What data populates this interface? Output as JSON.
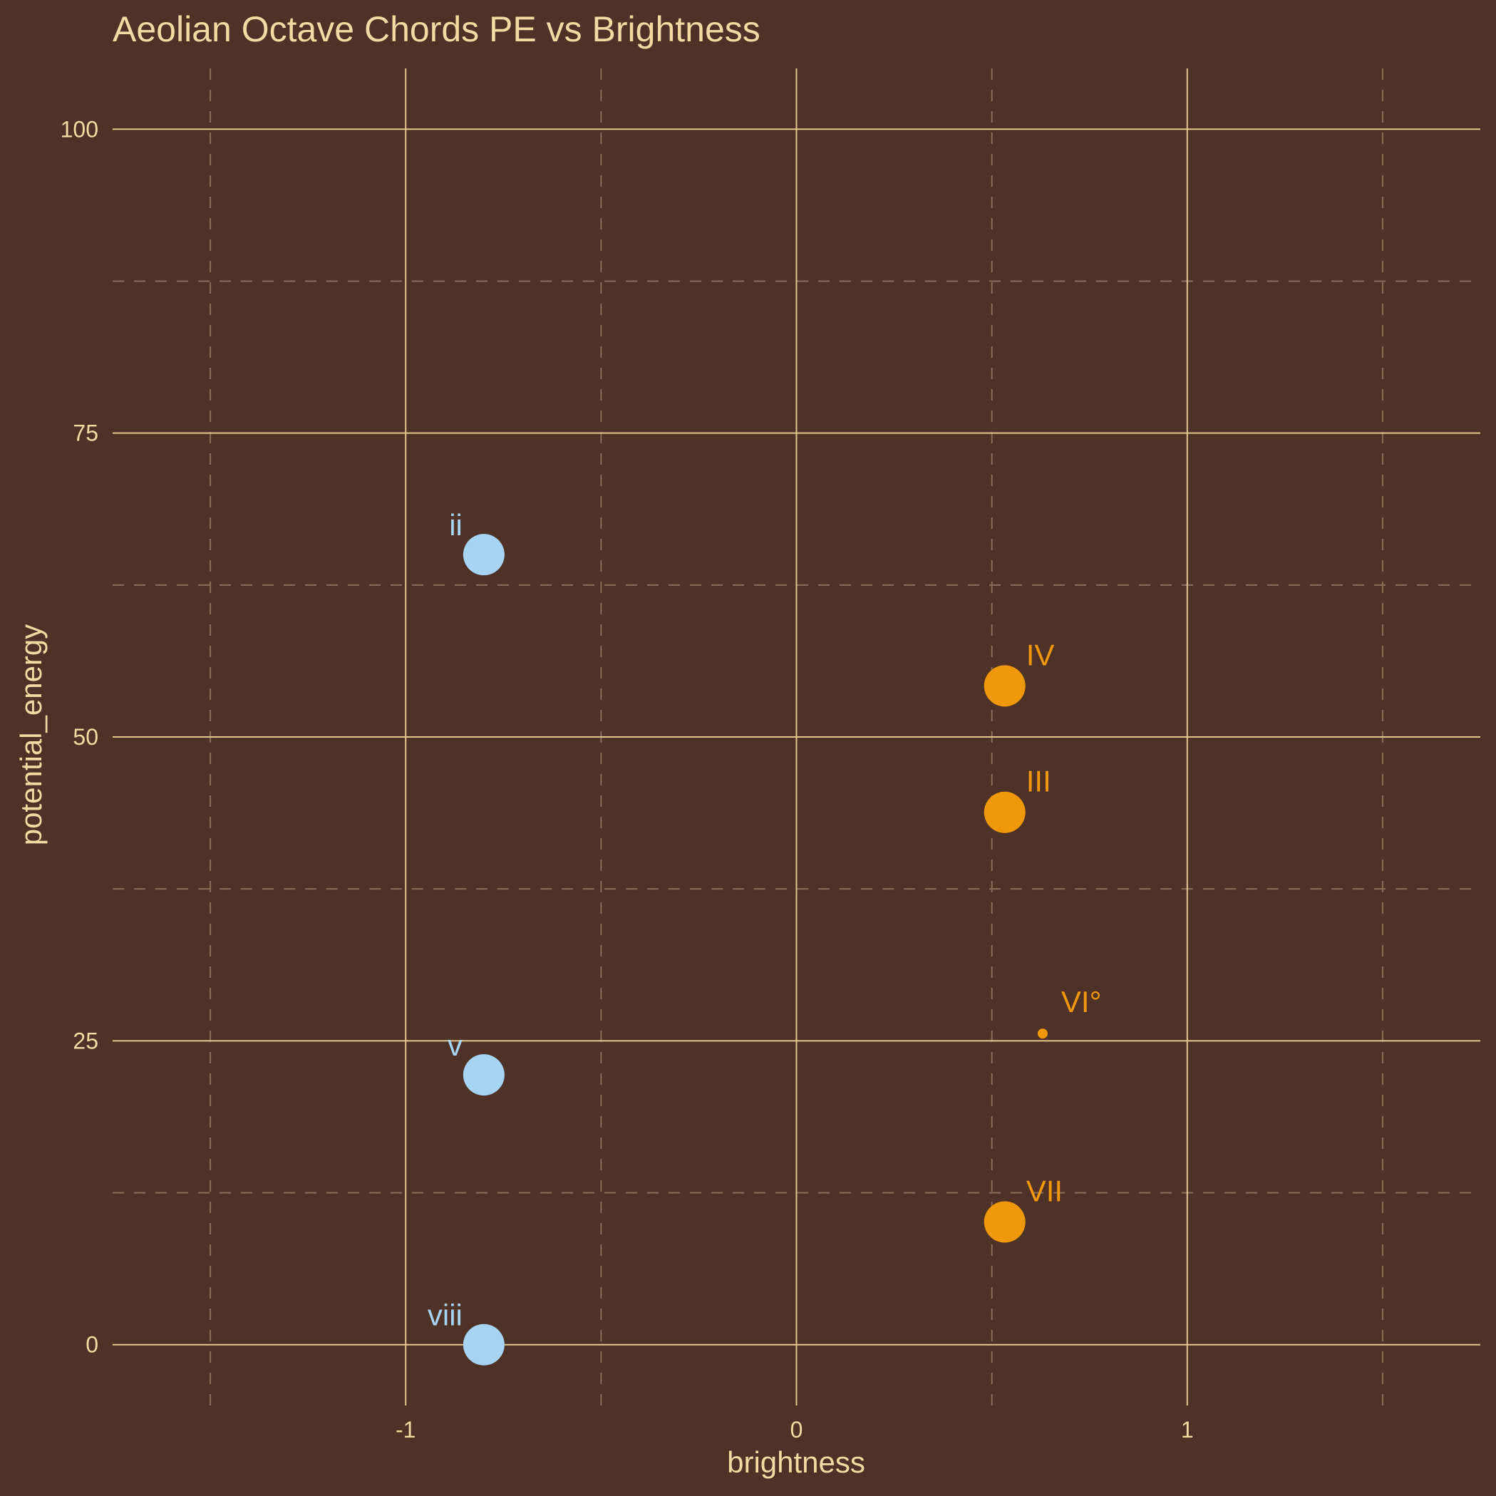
{
  "chart_data": {
    "type": "scatter",
    "title": "Aeolian Octave Chords PE vs Brightness",
    "xlabel": "brightness",
    "ylabel": "potential_energy",
    "xlim": [
      -1.75,
      1.75
    ],
    "ylim": [
      -5,
      105
    ],
    "x_ticks": [
      -1,
      0,
      1
    ],
    "x_tick_labels": [
      "-1",
      "0",
      "1"
    ],
    "y_ticks": [
      0,
      25,
      50,
      75,
      100
    ],
    "y_tick_labels": [
      "0",
      "25",
      "50",
      "75",
      "100"
    ],
    "grid": true,
    "legend": "none",
    "colors": {
      "background": "#4e3227",
      "text": "#f3d9a4",
      "grid_major": "#e2c58f",
      "grid_minor": "#8a6c58",
      "minor": "#a7d4f2",
      "major": "#ee980a"
    },
    "points": [
      {
        "label": "ii",
        "x": -0.8,
        "y": 65.0,
        "group": "minor",
        "size": "large"
      },
      {
        "label": "v",
        "x": -0.8,
        "y": 22.2,
        "group": "minor",
        "size": "large"
      },
      {
        "label": "viii",
        "x": -0.8,
        "y": 0.0,
        "group": "minor",
        "size": "large"
      },
      {
        "label": "IV",
        "x": 0.533,
        "y": 54.2,
        "group": "major",
        "size": "large"
      },
      {
        "label": "III",
        "x": 0.533,
        "y": 43.8,
        "group": "major",
        "size": "large"
      },
      {
        "label": "VI°",
        "x": 0.63,
        "y": 25.6,
        "group": "major",
        "size": "small"
      },
      {
        "label": "VII",
        "x": 0.533,
        "y": 10.1,
        "group": "major",
        "size": "large"
      }
    ]
  }
}
